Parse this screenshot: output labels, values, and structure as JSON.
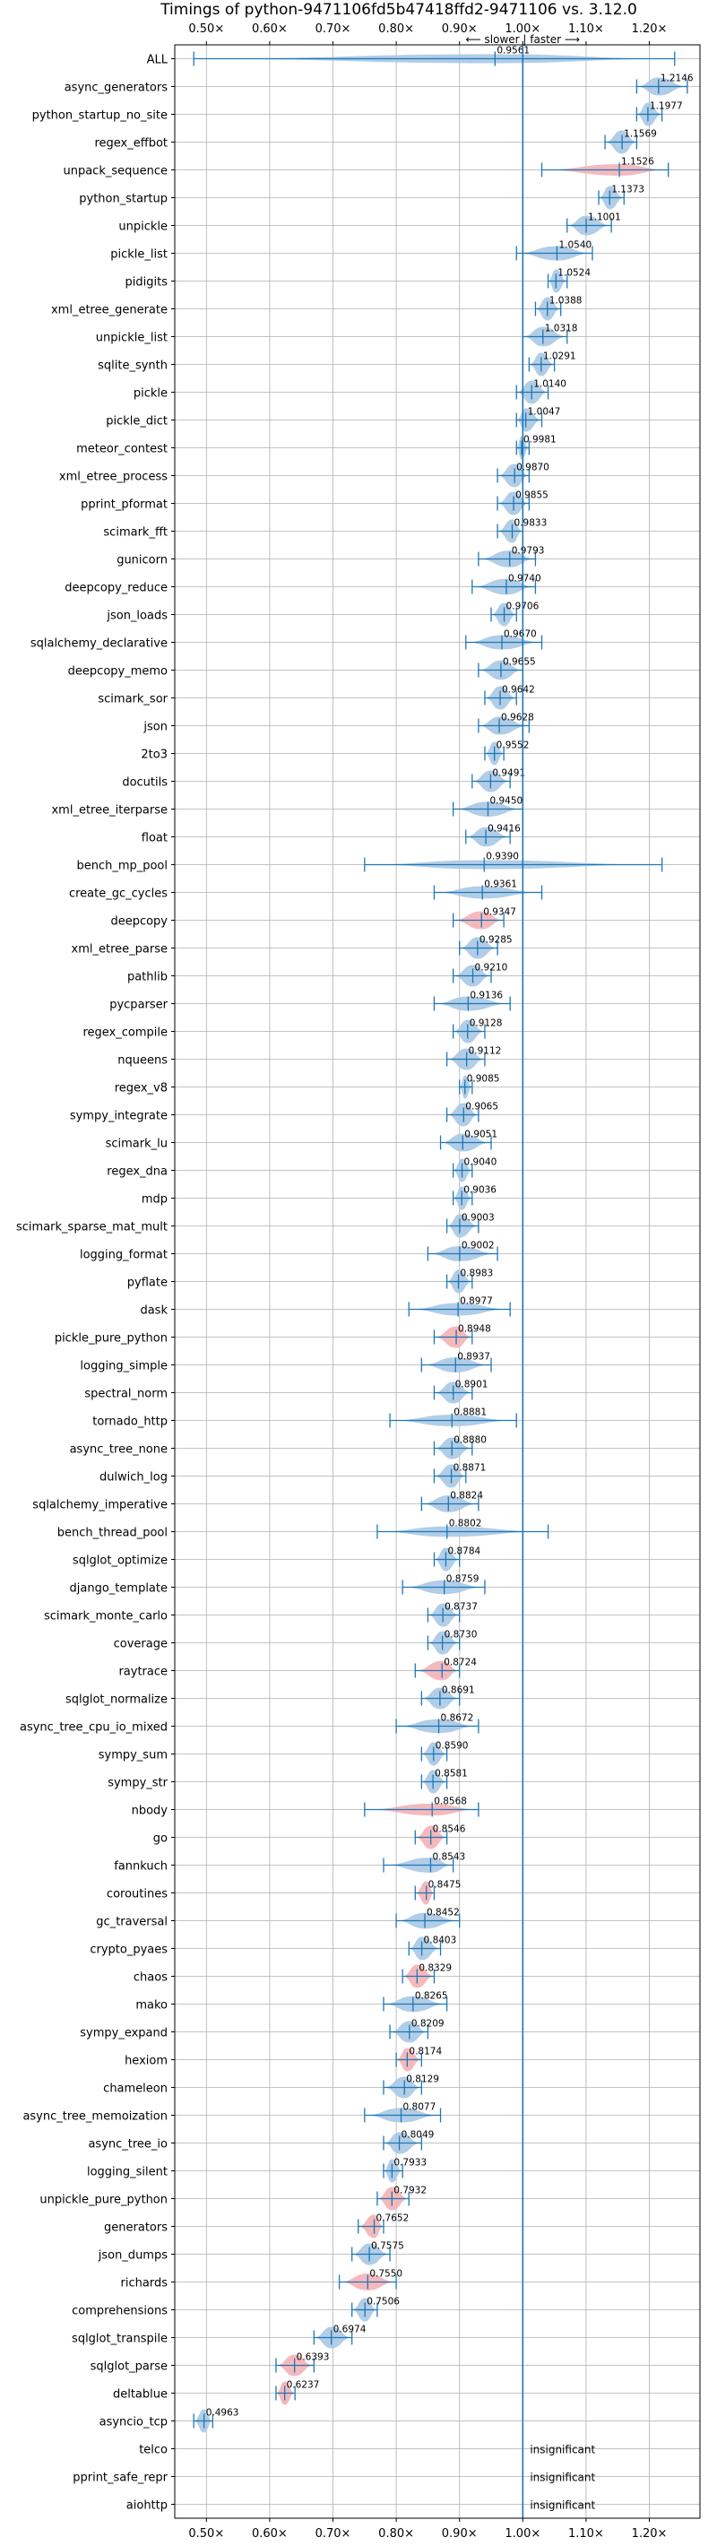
{
  "chart_data": {
    "type": "violin",
    "title": "Timings of python-9471106fd5b47418ffd2-9471106 vs. 3.12.0",
    "xlabel": "",
    "ylabel": "",
    "x_ticks": [
      "0.50×",
      "0.60×",
      "0.70×",
      "0.80×",
      "0.90×",
      "1.00×",
      "1.10×",
      "1.20×"
    ],
    "x_tick_values": [
      0.5,
      0.6,
      0.7,
      0.8,
      0.9,
      1.0,
      1.1,
      1.2
    ],
    "xlim": [
      0.45,
      1.28
    ],
    "annotation": "⟵ slower | faster ⟶",
    "grid": true,
    "reference_x": 1.0,
    "colors": {
      "improved": "#a8c8e4",
      "regressed": "#f4b1b6",
      "median_line": "#1f77b4",
      "reference": "#1f77b4"
    },
    "benchmarks": [
      {
        "name": "ALL",
        "value": 0.9561,
        "label": "0.9561",
        "status": "improved",
        "lo": 0.48,
        "hi": 1.24
      },
      {
        "name": "async_generators",
        "value": 1.2146,
        "label": "1.2146",
        "status": "improved",
        "lo": 1.18,
        "hi": 1.26
      },
      {
        "name": "python_startup_no_site",
        "value": 1.1977,
        "label": "1.1977",
        "status": "improved",
        "lo": 1.18,
        "hi": 1.22
      },
      {
        "name": "regex_effbot",
        "value": 1.1569,
        "label": "1.1569",
        "status": "improved",
        "lo": 1.13,
        "hi": 1.18
      },
      {
        "name": "unpack_sequence",
        "value": 1.1526,
        "label": "1.1526",
        "status": "regressed",
        "lo": 1.03,
        "hi": 1.23
      },
      {
        "name": "python_startup",
        "value": 1.1373,
        "label": "1.1373",
        "status": "improved",
        "lo": 1.12,
        "hi": 1.16
      },
      {
        "name": "unpickle",
        "value": 1.1001,
        "label": "1.1001",
        "status": "improved",
        "lo": 1.07,
        "hi": 1.14
      },
      {
        "name": "pickle_list",
        "value": 1.054,
        "label": "1.0540",
        "status": "improved",
        "lo": 0.99,
        "hi": 1.11
      },
      {
        "name": "pidigits",
        "value": 1.0524,
        "label": "1.0524",
        "status": "improved",
        "lo": 1.04,
        "hi": 1.07
      },
      {
        "name": "xml_etree_generate",
        "value": 1.0388,
        "label": "1.0388",
        "status": "improved",
        "lo": 1.02,
        "hi": 1.06
      },
      {
        "name": "unpickle_list",
        "value": 1.0318,
        "label": "1.0318",
        "status": "improved",
        "lo": 1.0,
        "hi": 1.07
      },
      {
        "name": "sqlite_synth",
        "value": 1.0291,
        "label": "1.0291",
        "status": "improved",
        "lo": 1.01,
        "hi": 1.05
      },
      {
        "name": "pickle",
        "value": 1.014,
        "label": "1.0140",
        "status": "improved",
        "lo": 0.99,
        "hi": 1.04
      },
      {
        "name": "pickle_dict",
        "value": 1.0047,
        "label": "1.0047",
        "status": "improved",
        "lo": 0.99,
        "hi": 1.03
      },
      {
        "name": "meteor_contest",
        "value": 0.9981,
        "label": "0.9981",
        "status": "improved",
        "lo": 0.99,
        "hi": 1.01
      },
      {
        "name": "xml_etree_process",
        "value": 0.987,
        "label": "0.9870",
        "status": "improved",
        "lo": 0.96,
        "hi": 1.01
      },
      {
        "name": "pprint_pformat",
        "value": 0.9855,
        "label": "0.9855",
        "status": "improved",
        "lo": 0.96,
        "hi": 1.01
      },
      {
        "name": "scimark_fft",
        "value": 0.9833,
        "label": "0.9833",
        "status": "improved",
        "lo": 0.96,
        "hi": 1.0
      },
      {
        "name": "gunicorn",
        "value": 0.9793,
        "label": "0.9793",
        "status": "improved",
        "lo": 0.93,
        "hi": 1.02
      },
      {
        "name": "deepcopy_reduce",
        "value": 0.974,
        "label": "0.9740",
        "status": "improved",
        "lo": 0.92,
        "hi": 1.02
      },
      {
        "name": "json_loads",
        "value": 0.9706,
        "label": "0.9706",
        "status": "improved",
        "lo": 0.95,
        "hi": 0.99
      },
      {
        "name": "sqlalchemy_declarative",
        "value": 0.967,
        "label": "0.9670",
        "status": "improved",
        "lo": 0.91,
        "hi": 1.03
      },
      {
        "name": "deepcopy_memo",
        "value": 0.9655,
        "label": "0.9655",
        "status": "improved",
        "lo": 0.93,
        "hi": 1.0
      },
      {
        "name": "scimark_sor",
        "value": 0.9642,
        "label": "0.9642",
        "status": "improved",
        "lo": 0.94,
        "hi": 0.99
      },
      {
        "name": "json",
        "value": 0.9628,
        "label": "0.9628",
        "status": "improved",
        "lo": 0.93,
        "hi": 1.01
      },
      {
        "name": "2to3",
        "value": 0.9552,
        "label": "0.9552",
        "status": "improved",
        "lo": 0.94,
        "hi": 0.97
      },
      {
        "name": "docutils",
        "value": 0.9491,
        "label": "0.9491",
        "status": "improved",
        "lo": 0.92,
        "hi": 0.98
      },
      {
        "name": "xml_etree_iterparse",
        "value": 0.945,
        "label": "0.9450",
        "status": "improved",
        "lo": 0.89,
        "hi": 1.0
      },
      {
        "name": "float",
        "value": 0.9416,
        "label": "0.9416",
        "status": "improved",
        "lo": 0.91,
        "hi": 0.98
      },
      {
        "name": "bench_mp_pool",
        "value": 0.939,
        "label": "0.9390",
        "status": "improved",
        "lo": 0.75,
        "hi": 1.22
      },
      {
        "name": "create_gc_cycles",
        "value": 0.9361,
        "label": "0.9361",
        "status": "improved",
        "lo": 0.86,
        "hi": 1.03
      },
      {
        "name": "deepcopy",
        "value": 0.9347,
        "label": "0.9347",
        "status": "regressed",
        "lo": 0.89,
        "hi": 0.97
      },
      {
        "name": "xml_etree_parse",
        "value": 0.9285,
        "label": "0.9285",
        "status": "improved",
        "lo": 0.9,
        "hi": 0.96
      },
      {
        "name": "pathlib",
        "value": 0.921,
        "label": "0.9210",
        "status": "improved",
        "lo": 0.89,
        "hi": 0.95
      },
      {
        "name": "pycparser",
        "value": 0.9136,
        "label": "0.9136",
        "status": "improved",
        "lo": 0.86,
        "hi": 0.98
      },
      {
        "name": "regex_compile",
        "value": 0.9128,
        "label": "0.9128",
        "status": "improved",
        "lo": 0.89,
        "hi": 0.94
      },
      {
        "name": "nqueens",
        "value": 0.9112,
        "label": "0.9112",
        "status": "improved",
        "lo": 0.88,
        "hi": 0.94
      },
      {
        "name": "regex_v8",
        "value": 0.9085,
        "label": "0.9085",
        "status": "improved",
        "lo": 0.9,
        "hi": 0.92
      },
      {
        "name": "sympy_integrate",
        "value": 0.9065,
        "label": "0.9065",
        "status": "improved",
        "lo": 0.88,
        "hi": 0.93
      },
      {
        "name": "scimark_lu",
        "value": 0.9051,
        "label": "0.9051",
        "status": "improved",
        "lo": 0.87,
        "hi": 0.95
      },
      {
        "name": "regex_dna",
        "value": 0.904,
        "label": "0.9040",
        "status": "improved",
        "lo": 0.89,
        "hi": 0.92
      },
      {
        "name": "mdp",
        "value": 0.9036,
        "label": "0.9036",
        "status": "improved",
        "lo": 0.89,
        "hi": 0.92
      },
      {
        "name": "scimark_sparse_mat_mult",
        "value": 0.9003,
        "label": "0.9003",
        "status": "improved",
        "lo": 0.88,
        "hi": 0.93
      },
      {
        "name": "logging_format",
        "value": 0.9002,
        "label": "0.9002",
        "status": "improved",
        "lo": 0.85,
        "hi": 0.96
      },
      {
        "name": "pyflate",
        "value": 0.8983,
        "label": "0.8983",
        "status": "improved",
        "lo": 0.88,
        "hi": 0.92
      },
      {
        "name": "dask",
        "value": 0.8977,
        "label": "0.8977",
        "status": "improved",
        "lo": 0.82,
        "hi": 0.98
      },
      {
        "name": "pickle_pure_python",
        "value": 0.8948,
        "label": "0.8948",
        "status": "regressed",
        "lo": 0.86,
        "hi": 0.92
      },
      {
        "name": "logging_simple",
        "value": 0.8937,
        "label": "0.8937",
        "status": "improved",
        "lo": 0.84,
        "hi": 0.95
      },
      {
        "name": "spectral_norm",
        "value": 0.8901,
        "label": "0.8901",
        "status": "improved",
        "lo": 0.86,
        "hi": 0.92
      },
      {
        "name": "tornado_http",
        "value": 0.8881,
        "label": "0.8881",
        "status": "improved",
        "lo": 0.79,
        "hi": 0.99
      },
      {
        "name": "async_tree_none",
        "value": 0.888,
        "label": "0.8880",
        "status": "improved",
        "lo": 0.86,
        "hi": 0.92
      },
      {
        "name": "dulwich_log",
        "value": 0.8871,
        "label": "0.8871",
        "status": "improved",
        "lo": 0.86,
        "hi": 0.91
      },
      {
        "name": "sqlalchemy_imperative",
        "value": 0.8824,
        "label": "0.8824",
        "status": "improved",
        "lo": 0.84,
        "hi": 0.93
      },
      {
        "name": "bench_thread_pool",
        "value": 0.8802,
        "label": "0.8802",
        "status": "improved",
        "lo": 0.77,
        "hi": 1.04
      },
      {
        "name": "sqlglot_optimize",
        "value": 0.8784,
        "label": "0.8784",
        "status": "improved",
        "lo": 0.86,
        "hi": 0.9
      },
      {
        "name": "django_template",
        "value": 0.8759,
        "label": "0.8759",
        "status": "improved",
        "lo": 0.81,
        "hi": 0.94
      },
      {
        "name": "scimark_monte_carlo",
        "value": 0.8737,
        "label": "0.8737",
        "status": "improved",
        "lo": 0.85,
        "hi": 0.9
      },
      {
        "name": "coverage",
        "value": 0.873,
        "label": "0.8730",
        "status": "improved",
        "lo": 0.85,
        "hi": 0.9
      },
      {
        "name": "raytrace",
        "value": 0.8724,
        "label": "0.8724",
        "status": "regressed",
        "lo": 0.83,
        "hi": 0.9
      },
      {
        "name": "sqlglot_normalize",
        "value": 0.8691,
        "label": "0.8691",
        "status": "improved",
        "lo": 0.84,
        "hi": 0.9
      },
      {
        "name": "async_tree_cpu_io_mixed",
        "value": 0.8672,
        "label": "0.8672",
        "status": "improved",
        "lo": 0.8,
        "hi": 0.93
      },
      {
        "name": "sympy_sum",
        "value": 0.859,
        "label": "0.8590",
        "status": "improved",
        "lo": 0.84,
        "hi": 0.88
      },
      {
        "name": "sympy_str",
        "value": 0.8581,
        "label": "0.8581",
        "status": "improved",
        "lo": 0.84,
        "hi": 0.88
      },
      {
        "name": "nbody",
        "value": 0.8568,
        "label": "0.8568",
        "status": "regressed",
        "lo": 0.75,
        "hi": 0.93
      },
      {
        "name": "go",
        "value": 0.8546,
        "label": "0.8546",
        "status": "regressed",
        "lo": 0.83,
        "hi": 0.88
      },
      {
        "name": "fannkuch",
        "value": 0.8543,
        "label": "0.8543",
        "status": "improved",
        "lo": 0.78,
        "hi": 0.89
      },
      {
        "name": "coroutines",
        "value": 0.8475,
        "label": "0.8475",
        "status": "regressed",
        "lo": 0.83,
        "hi": 0.86
      },
      {
        "name": "gc_traversal",
        "value": 0.8452,
        "label": "0.8452",
        "status": "improved",
        "lo": 0.8,
        "hi": 0.9
      },
      {
        "name": "crypto_pyaes",
        "value": 0.8403,
        "label": "0.8403",
        "status": "improved",
        "lo": 0.82,
        "hi": 0.87
      },
      {
        "name": "chaos",
        "value": 0.8329,
        "label": "0.8329",
        "status": "regressed",
        "lo": 0.81,
        "hi": 0.86
      },
      {
        "name": "mako",
        "value": 0.8265,
        "label": "0.8265",
        "status": "improved",
        "lo": 0.78,
        "hi": 0.88
      },
      {
        "name": "sympy_expand",
        "value": 0.8209,
        "label": "0.8209",
        "status": "improved",
        "lo": 0.79,
        "hi": 0.85
      },
      {
        "name": "hexiom",
        "value": 0.8174,
        "label": "0.8174",
        "status": "regressed",
        "lo": 0.8,
        "hi": 0.84
      },
      {
        "name": "chameleon",
        "value": 0.8129,
        "label": "0.8129",
        "status": "improved",
        "lo": 0.78,
        "hi": 0.84
      },
      {
        "name": "async_tree_memoization",
        "value": 0.8077,
        "label": "0.8077",
        "status": "improved",
        "lo": 0.75,
        "hi": 0.87
      },
      {
        "name": "async_tree_io",
        "value": 0.8049,
        "label": "0.8049",
        "status": "improved",
        "lo": 0.78,
        "hi": 0.84
      },
      {
        "name": "logging_silent",
        "value": 0.7933,
        "label": "0.7933",
        "status": "improved",
        "lo": 0.78,
        "hi": 0.81
      },
      {
        "name": "unpickle_pure_python",
        "value": 0.7932,
        "label": "0.7932",
        "status": "regressed",
        "lo": 0.77,
        "hi": 0.82
      },
      {
        "name": "generators",
        "value": 0.7652,
        "label": "0.7652",
        "status": "regressed",
        "lo": 0.74,
        "hi": 0.78
      },
      {
        "name": "json_dumps",
        "value": 0.7575,
        "label": "0.7575",
        "status": "improved",
        "lo": 0.73,
        "hi": 0.79
      },
      {
        "name": "richards",
        "value": 0.755,
        "label": "0.7550",
        "status": "regressed",
        "lo": 0.71,
        "hi": 0.8
      },
      {
        "name": "comprehensions",
        "value": 0.7506,
        "label": "0.7506",
        "status": "improved",
        "lo": 0.73,
        "hi": 0.77
      },
      {
        "name": "sqlglot_transpile",
        "value": 0.6974,
        "label": "0.6974",
        "status": "improved",
        "lo": 0.67,
        "hi": 0.73
      },
      {
        "name": "sqlglot_parse",
        "value": 0.6393,
        "label": "0.6393",
        "status": "regressed",
        "lo": 0.61,
        "hi": 0.67
      },
      {
        "name": "deltablue",
        "value": 0.6237,
        "label": "0.6237",
        "status": "regressed",
        "lo": 0.61,
        "hi": 0.64
      },
      {
        "name": "asyncio_tcp",
        "value": 0.4963,
        "label": "0.4963",
        "status": "improved",
        "lo": 0.48,
        "hi": 0.51
      },
      {
        "name": "telco",
        "value": null,
        "label": "insignificant",
        "status": "insignificant"
      },
      {
        "name": "pprint_safe_repr",
        "value": null,
        "label": "insignificant",
        "status": "insignificant"
      },
      {
        "name": "aiohttp",
        "value": null,
        "label": "insignificant",
        "status": "insignificant"
      }
    ]
  }
}
